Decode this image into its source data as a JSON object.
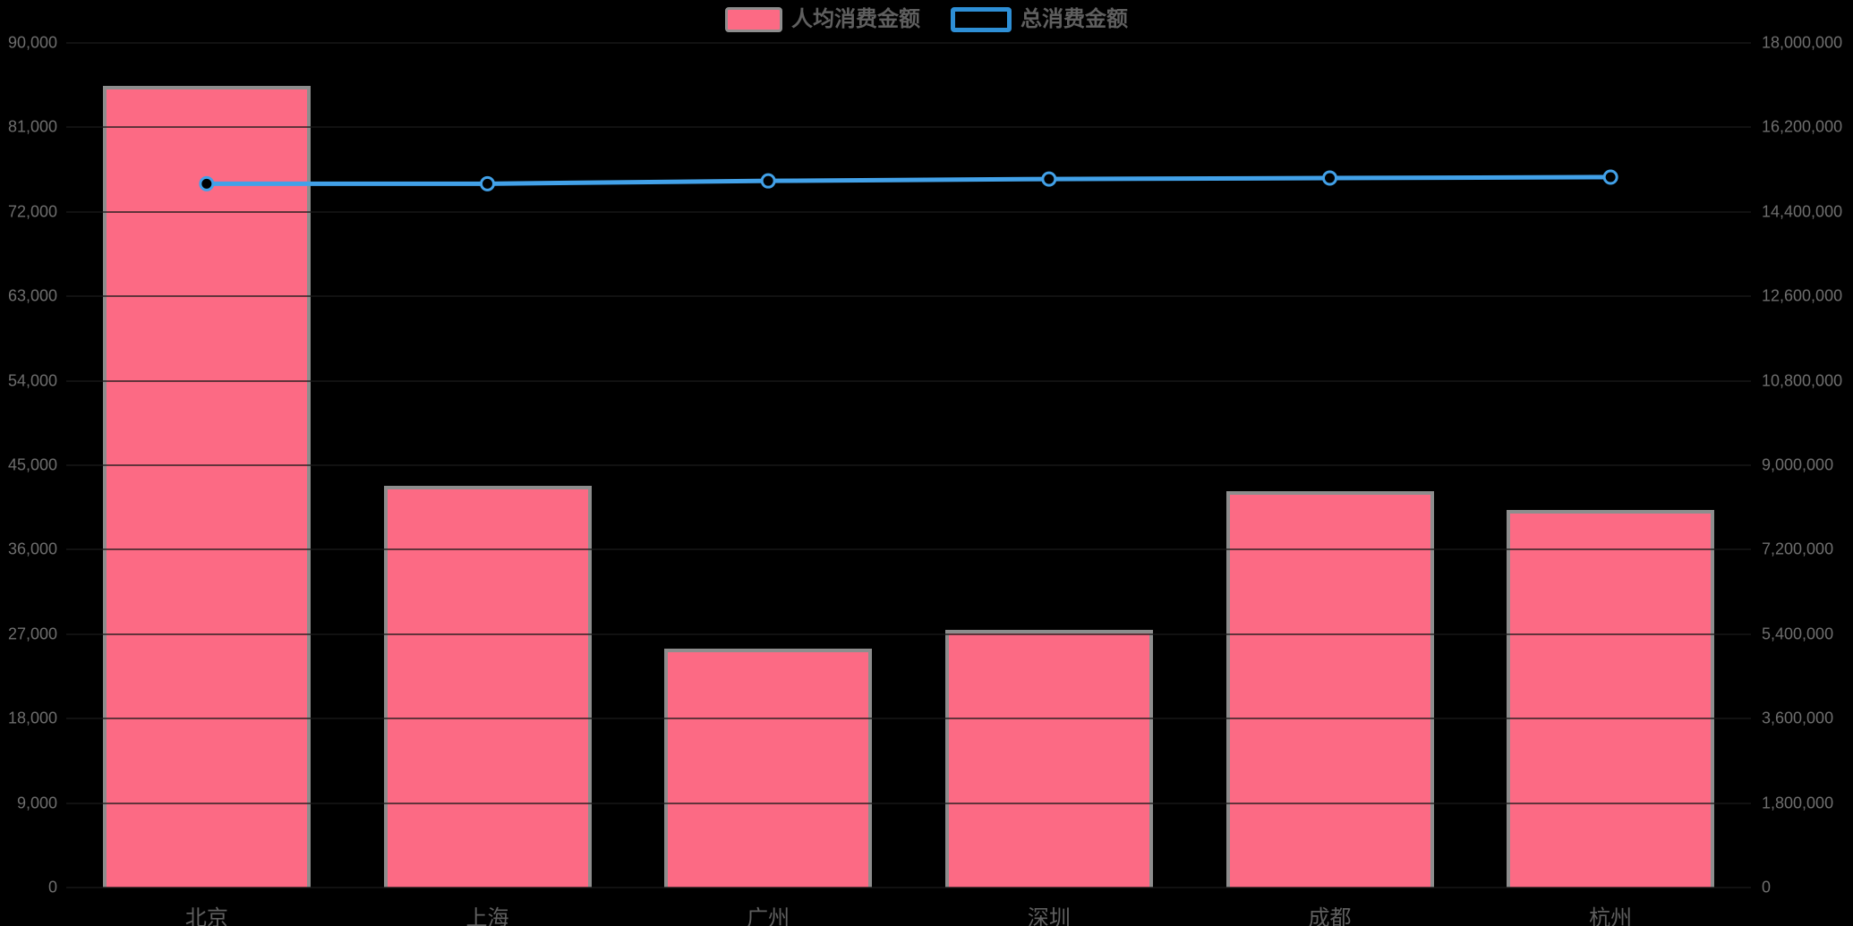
{
  "chart_data": {
    "type": "bar",
    "title": "",
    "categories": [
      "北京",
      "上海",
      "广州",
      "深圳",
      "成都",
      "杭州"
    ],
    "series": [
      {
        "name": "人均消费金额",
        "type": "bar",
        "axis": "left",
        "color": "#FC6A84",
        "border_color": "#8D8D8D",
        "values": [
          85400,
          42800,
          25500,
          27500,
          42200,
          40200
        ]
      },
      {
        "name": "总消费金额",
        "type": "line",
        "axis": "right",
        "color": "#42A1E8",
        "legend_border_color": "#2E8FD6",
        "marker": "hollow-circle",
        "values": [
          15000000,
          15000000,
          15060000,
          15100000,
          15120000,
          15140000
        ]
      }
    ],
    "left_axis": {
      "min": 0,
      "max": 90000,
      "tick_labels_top_to_bottom": [
        "90,000",
        "81,000",
        "72,000",
        "63,000",
        "54,000",
        "45,000",
        "36,000",
        "27,000",
        "18,000",
        "9,000",
        "0"
      ]
    },
    "right_axis": {
      "min": 0,
      "max": 18000000,
      "tick_labels_top_to_bottom": [
        "18,000,000",
        "16,200,000",
        "14,400,000",
        "12,600,000",
        "10,800,000",
        "9,000,000",
        "7,200,000",
        "5,400,000",
        "3,600,000",
        "1,800,000",
        "0"
      ]
    },
    "legend_position": "top-center",
    "grid_lines": true,
    "background_color": "#000000",
    "axis_text_color": "#6e6e6e",
    "legend_text_color": "#5f5f5f"
  }
}
